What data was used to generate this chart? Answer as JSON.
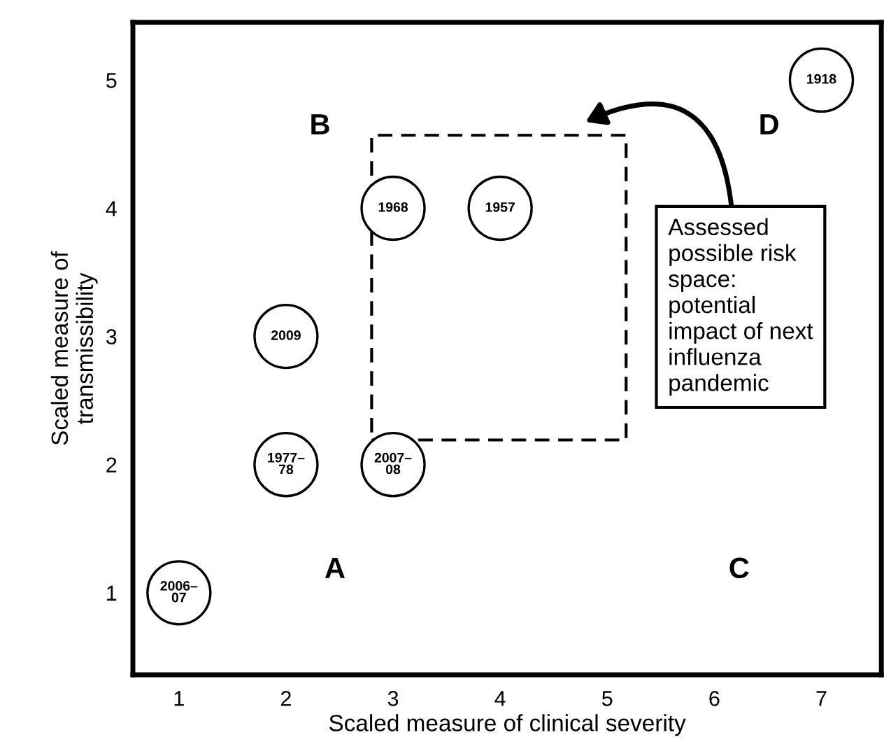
{
  "chart_data": {
    "type": "scatter",
    "xlabel": "Scaled measure of clinical severity",
    "ylabel": "Scaled measure of\ntransmissibility",
    "x": [
      7,
      3,
      4,
      2,
      2,
      3,
      1
    ],
    "values": [
      5,
      4,
      4,
      3,
      2,
      2,
      1
    ],
    "color": "#ffffff",
    "marker": "circle",
    "xlim": [
      0.57,
      7.56
    ],
    "ylim": [
      0.36,
      5.45
    ],
    "xticks": [
      1,
      2,
      3,
      4,
      5,
      6,
      7
    ],
    "yticks": [
      1,
      2,
      3,
      4,
      5
    ],
    "grid": false,
    "annotations": [
      "B",
      "D",
      "A",
      "C",
      "Assessed\npossible risk\nspace:\npotential\nimpact of next\ninfluenza\npandemic",
      {
        "text": "1918",
        "x": 7,
        "y": 5
      },
      {
        "text": "1968",
        "x": 3,
        "y": 4
      },
      {
        "text": "1957",
        "x": 4,
        "y": 4
      },
      {
        "text": "2009",
        "x": 2,
        "y": 3
      },
      {
        "text": "1977–\n78",
        "x": 2,
        "y": 2
      },
      {
        "text": "2007–\n08",
        "x": 3,
        "y": 2
      },
      {
        "text": "2006–\n07",
        "x": 1,
        "y": 1
      }
    ]
  }
}
